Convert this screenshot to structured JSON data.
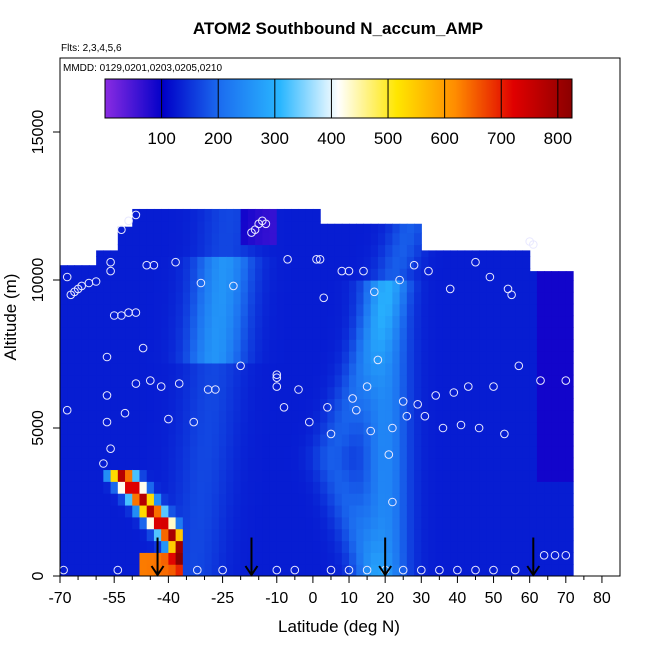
{
  "chart_data": {
    "type": "heatmap",
    "title": "ATOM2 Southbound N_accum_AMP",
    "flights_label": "Flts: 2,3,4,5,6",
    "dates_label": "MMDD: 0129,0201,0203,0205,0210",
    "xlabel": "Latitude (deg N)",
    "ylabel": "Altitude (m)",
    "xlim": [
      -70,
      85
    ],
    "ylim": [
      0,
      17500
    ],
    "x_ticks": [
      -70,
      -55,
      -40,
      -25,
      -10,
      0,
      10,
      20,
      30,
      40,
      50,
      60,
      70,
      80
    ],
    "x_tick_labels": [
      "-70",
      "-55",
      "-40",
      "-25",
      "-10",
      "0",
      "10",
      "20",
      "30",
      "40",
      "50",
      "60",
      "70",
      "80"
    ],
    "x_minor_ticks": [
      -65,
      -60,
      -50,
      -45,
      -35,
      -30,
      -20,
      -15,
      -5,
      5,
      15,
      25,
      35,
      45,
      55,
      65,
      75
    ],
    "y_ticks": [
      0,
      5000,
      10000,
      15000
    ],
    "y_tick_labels": [
      "0",
      "5000",
      "10000",
      "15000"
    ],
    "colorbar": {
      "min": 0,
      "max": 825,
      "ticks": [
        100,
        200,
        300,
        400,
        500,
        600,
        700,
        800
      ],
      "tick_labels": [
        "100",
        "200",
        "300",
        "400",
        "500",
        "600",
        "700",
        "800"
      ],
      "colors": [
        "#8a2be2",
        "#0000c8",
        "#1c6ff0",
        "#29b6ff",
        "#ffffff",
        "#ffe600",
        "#ff8c00",
        "#e00000",
        "#8b0000"
      ]
    },
    "arrows_latitude": [
      -43,
      -17,
      20,
      61
    ],
    "sample_points": [
      [
        -69,
        200
      ],
      [
        -68,
        5600
      ],
      [
        -68,
        10100
      ],
      [
        -67,
        9500
      ],
      [
        -66,
        9600
      ],
      [
        -65,
        9700
      ],
      [
        -64,
        9800
      ],
      [
        -62,
        9900
      ],
      [
        -60,
        9950
      ],
      [
        -58,
        3800
      ],
      [
        -57,
        5200
      ],
      [
        -57,
        6100
      ],
      [
        -57,
        7400
      ],
      [
        -56,
        4300
      ],
      [
        -56,
        10300
      ],
      [
        -56,
        10600
      ],
      [
        -55,
        8800
      ],
      [
        -54,
        200
      ],
      [
        -53,
        8800
      ],
      [
        -53,
        11700
      ],
      [
        -52,
        5500
      ],
      [
        -51,
        12000
      ],
      [
        -51,
        8900
      ],
      [
        -49,
        6500
      ],
      [
        -49,
        12200
      ],
      [
        -49,
        8900
      ],
      [
        -47,
        7700
      ],
      [
        -46,
        10500
      ],
      [
        -45,
        6600
      ],
      [
        -44,
        10500
      ],
      [
        -42,
        6400
      ],
      [
        -40,
        5300
      ],
      [
        -38,
        10600
      ],
      [
        -37,
        6500
      ],
      [
        -33,
        5200
      ],
      [
        -31,
        9900
      ],
      [
        -29,
        6300
      ],
      [
        -27,
        6300
      ],
      [
        -22,
        9800
      ],
      [
        -20,
        7100
      ],
      [
        -17,
        11600
      ],
      [
        -16,
        11700
      ],
      [
        -15,
        11900
      ],
      [
        -14,
        12000
      ],
      [
        -13,
        11900
      ],
      [
        -10,
        6700
      ],
      [
        -10,
        6800
      ],
      [
        -10,
        6400
      ],
      [
        -8,
        5700
      ],
      [
        -7,
        10700
      ],
      [
        -4,
        6300
      ],
      [
        -1,
        5200
      ],
      [
        1,
        10700
      ],
      [
        2,
        10700
      ],
      [
        3,
        9400
      ],
      [
        4,
        5700
      ],
      [
        5,
        4800
      ],
      [
        8,
        10300
      ],
      [
        10,
        10300
      ],
      [
        11,
        6000
      ],
      [
        12,
        5600
      ],
      [
        14,
        10300
      ],
      [
        15,
        6400
      ],
      [
        16,
        4900
      ],
      [
        17,
        9600
      ],
      [
        18,
        7300
      ],
      [
        21,
        4100
      ],
      [
        22,
        5000
      ],
      [
        22,
        2500
      ],
      [
        24,
        10000
      ],
      [
        25,
        5900
      ],
      [
        26,
        5400
      ],
      [
        28,
        10500
      ],
      [
        29,
        5800
      ],
      [
        31,
        5400
      ],
      [
        32,
        10300
      ],
      [
        34,
        6100
      ],
      [
        36,
        5000
      ],
      [
        38,
        9700
      ],
      [
        39,
        6200
      ],
      [
        41,
        5100
      ],
      [
        43,
        6400
      ],
      [
        45,
        10600
      ],
      [
        46,
        5000
      ],
      [
        49,
        10100
      ],
      [
        50,
        6400
      ],
      [
        53,
        4800
      ],
      [
        54,
        9700
      ],
      [
        55,
        9500
      ],
      [
        57,
        7100
      ],
      [
        60,
        11300
      ],
      [
        61,
        11200
      ],
      [
        63,
        6600
      ],
      [
        64,
        700
      ],
      [
        67,
        700
      ],
      [
        -32,
        200
      ],
      [
        -25,
        200
      ],
      [
        -10,
        200
      ],
      [
        -5,
        200
      ],
      [
        5,
        200
      ],
      [
        10,
        200
      ],
      [
        15,
        200
      ],
      [
        20,
        200
      ],
      [
        25,
        200
      ],
      [
        30,
        200
      ],
      [
        35,
        200
      ],
      [
        40,
        200
      ],
      [
        45,
        200
      ],
      [
        50,
        200
      ],
      [
        56,
        200
      ],
      [
        70,
        6600
      ],
      [
        70,
        700
      ]
    ]
  }
}
